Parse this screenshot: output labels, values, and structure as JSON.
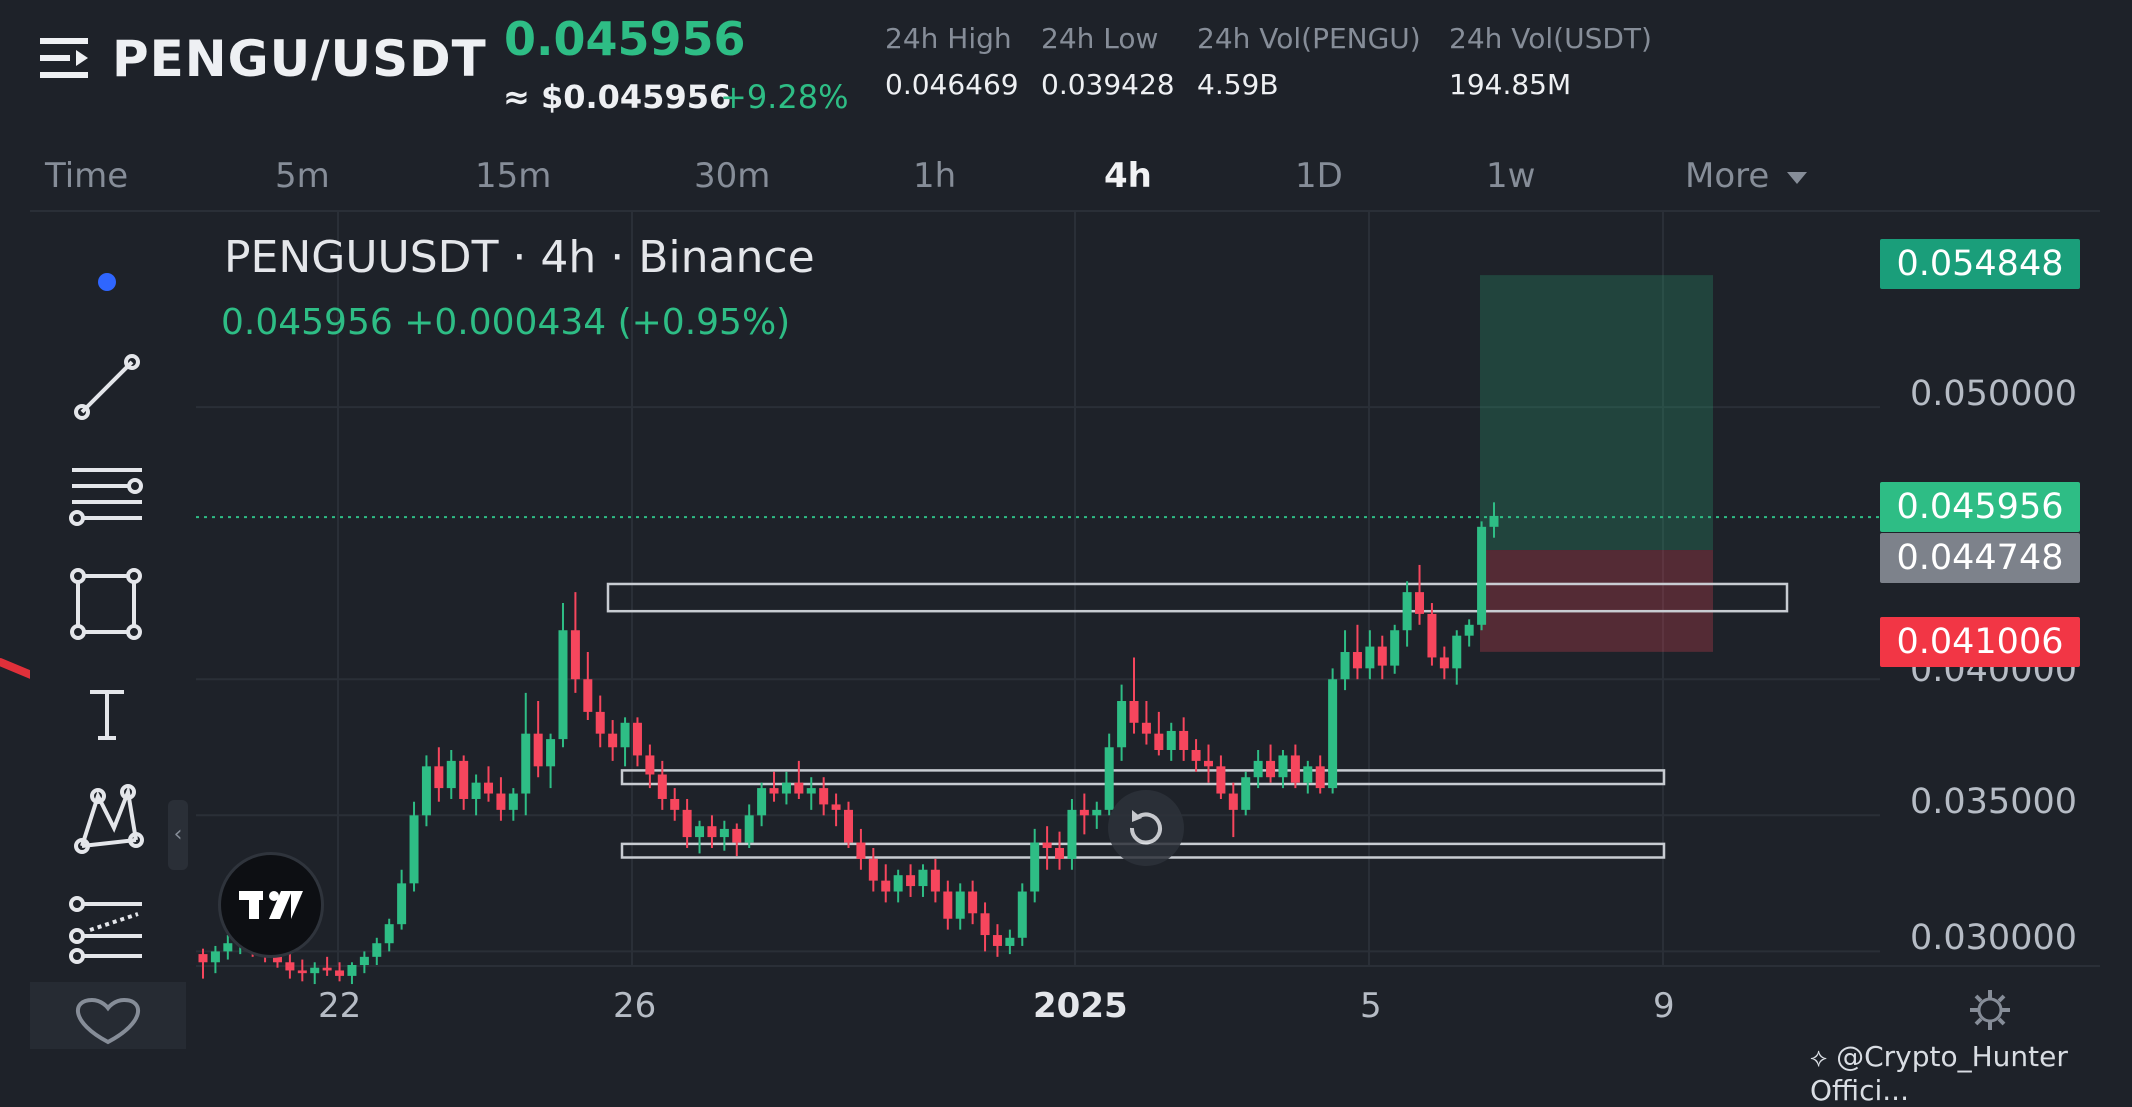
{
  "header": {
    "pair": "PENGU/USDT",
    "last_price": "0.045956",
    "usd_price": "≈ $0.045956",
    "change_pct": "+9.28%",
    "stats": [
      {
        "label": "24h High",
        "value": "0.046469"
      },
      {
        "label": "24h Low",
        "value": "0.039428"
      },
      {
        "label": "24h Vol(PENGU)",
        "value": "4.59B"
      },
      {
        "label": "24h Vol(USDT)",
        "value": "194.85M"
      }
    ]
  },
  "timeframes": {
    "items": [
      "Time",
      "5m",
      "15m",
      "30m",
      "1h",
      "4h",
      "1D",
      "1w",
      "More"
    ],
    "active": "4h"
  },
  "chart": {
    "legend_title": "PENGUUSDT · 4h · Binance",
    "legend_values": "0.045956  +0.000434 (+0.95%)"
  },
  "price_labels": {
    "take_profit": "0.054848",
    "last": "0.045956",
    "entry": "0.044748",
    "stop": "0.041006"
  },
  "chart_data": {
    "type": "candlestick",
    "title": "PENGUUSDT · 4h · Binance",
    "y_axis": {
      "ticks": [
        "0.050000",
        "0.040000",
        "0.035000",
        "0.030000"
      ],
      "range": [
        0.0295,
        0.0568
      ]
    },
    "x_axis": {
      "ticks": [
        "22",
        "26",
        "2025",
        "5",
        "9"
      ]
    },
    "last_price": 0.045956,
    "position": {
      "take_profit": 0.054848,
      "entry": 0.044748,
      "stop": 0.041006
    },
    "horizontal_zones": [
      {
        "low": 0.0425,
        "high": 0.0435
      },
      {
        "low": 0.03615,
        "high": 0.03665
      },
      {
        "low": 0.03345,
        "high": 0.03395
      }
    ],
    "candles": [
      [
        0.0299,
        0.0301,
        0.029,
        0.0296
      ],
      [
        0.0296,
        0.0302,
        0.0292,
        0.03
      ],
      [
        0.03,
        0.0306,
        0.0297,
        0.0303
      ],
      [
        0.0303,
        0.0308,
        0.0299,
        0.0305
      ],
      [
        0.0305,
        0.0307,
        0.0298,
        0.03
      ],
      [
        0.03,
        0.0316,
        0.0296,
        0.0298
      ],
      [
        0.0298,
        0.0303,
        0.0294,
        0.0296
      ],
      [
        0.0296,
        0.03,
        0.029,
        0.0293
      ],
      [
        0.0293,
        0.0297,
        0.0289,
        0.0292
      ],
      [
        0.0292,
        0.0296,
        0.0288,
        0.0294
      ],
      [
        0.0294,
        0.0298,
        0.0291,
        0.0293
      ],
      [
        0.0293,
        0.0296,
        0.0289,
        0.0291
      ],
      [
        0.0291,
        0.0296,
        0.0288,
        0.0295
      ],
      [
        0.0295,
        0.03,
        0.0292,
        0.0298
      ],
      [
        0.0298,
        0.0305,
        0.0295,
        0.0303
      ],
      [
        0.0303,
        0.0312,
        0.03,
        0.031
      ],
      [
        0.031,
        0.033,
        0.0308,
        0.0325
      ],
      [
        0.0325,
        0.0355,
        0.0322,
        0.035
      ],
      [
        0.035,
        0.0372,
        0.0346,
        0.0368
      ],
      [
        0.0368,
        0.0375,
        0.0355,
        0.036
      ],
      [
        0.036,
        0.0374,
        0.0356,
        0.037
      ],
      [
        0.037,
        0.0372,
        0.0352,
        0.0356
      ],
      [
        0.0356,
        0.0365,
        0.035,
        0.0362
      ],
      [
        0.0362,
        0.0368,
        0.0355,
        0.0358
      ],
      [
        0.0358,
        0.0364,
        0.0348,
        0.0352
      ],
      [
        0.0352,
        0.036,
        0.0348,
        0.0358
      ],
      [
        0.0358,
        0.0395,
        0.035,
        0.038
      ],
      [
        0.038,
        0.0392,
        0.0364,
        0.0368
      ],
      [
        0.0368,
        0.038,
        0.036,
        0.0378
      ],
      [
        0.0378,
        0.0428,
        0.0375,
        0.0418
      ],
      [
        0.0418,
        0.0432,
        0.0395,
        0.04
      ],
      [
        0.04,
        0.041,
        0.0385,
        0.0388
      ],
      [
        0.0388,
        0.0394,
        0.0375,
        0.038
      ],
      [
        0.038,
        0.0385,
        0.037,
        0.0375
      ],
      [
        0.0375,
        0.0386,
        0.0368,
        0.0384
      ],
      [
        0.0384,
        0.0386,
        0.0368,
        0.0372
      ],
      [
        0.0372,
        0.0376,
        0.036,
        0.0365
      ],
      [
        0.0365,
        0.037,
        0.0352,
        0.0356
      ],
      [
        0.0356,
        0.036,
        0.0348,
        0.0352
      ],
      [
        0.0352,
        0.0356,
        0.0338,
        0.0342
      ],
      [
        0.0342,
        0.0348,
        0.0336,
        0.0346
      ],
      [
        0.0346,
        0.035,
        0.0338,
        0.0342
      ],
      [
        0.0342,
        0.0348,
        0.0337,
        0.0345
      ],
      [
        0.0345,
        0.0347,
        0.0335,
        0.034
      ],
      [
        0.034,
        0.0354,
        0.0338,
        0.035
      ],
      [
        0.035,
        0.0362,
        0.0346,
        0.036
      ],
      [
        0.036,
        0.0366,
        0.0355,
        0.0358
      ],
      [
        0.0358,
        0.0366,
        0.0354,
        0.0362
      ],
      [
        0.0362,
        0.037,
        0.0356,
        0.0358
      ],
      [
        0.0358,
        0.0364,
        0.0352,
        0.036
      ],
      [
        0.036,
        0.0364,
        0.035,
        0.0354
      ],
      [
        0.0354,
        0.0358,
        0.0346,
        0.0352
      ],
      [
        0.0352,
        0.0355,
        0.0338,
        0.034
      ],
      [
        0.034,
        0.0345,
        0.033,
        0.0334
      ],
      [
        0.0334,
        0.0338,
        0.0322,
        0.0326
      ],
      [
        0.0326,
        0.0332,
        0.0318,
        0.0322
      ],
      [
        0.0322,
        0.033,
        0.0318,
        0.0328
      ],
      [
        0.0328,
        0.0332,
        0.032,
        0.0324
      ],
      [
        0.0324,
        0.0332,
        0.032,
        0.033
      ],
      [
        0.033,
        0.0334,
        0.0318,
        0.0322
      ],
      [
        0.0322,
        0.0326,
        0.0308,
        0.0312
      ],
      [
        0.0312,
        0.0325,
        0.0308,
        0.0322
      ],
      [
        0.0322,
        0.0326,
        0.031,
        0.0314
      ],
      [
        0.0314,
        0.0318,
        0.03,
        0.0306
      ],
      [
        0.0306,
        0.031,
        0.0298,
        0.0302
      ],
      [
        0.0302,
        0.0308,
        0.0299,
        0.0305
      ],
      [
        0.0305,
        0.0325,
        0.0302,
        0.0322
      ],
      [
        0.0322,
        0.0345,
        0.0318,
        0.034
      ],
      [
        0.034,
        0.0346,
        0.033,
        0.0338
      ],
      [
        0.0338,
        0.0344,
        0.033,
        0.0334
      ],
      [
        0.0334,
        0.0356,
        0.033,
        0.0352
      ],
      [
        0.0352,
        0.0358,
        0.0343,
        0.035
      ],
      [
        0.035,
        0.0355,
        0.0345,
        0.0352
      ],
      [
        0.0352,
        0.038,
        0.035,
        0.0375
      ],
      [
        0.0375,
        0.0398,
        0.037,
        0.0392
      ],
      [
        0.0392,
        0.0408,
        0.038,
        0.0384
      ],
      [
        0.0384,
        0.0392,
        0.0376,
        0.038
      ],
      [
        0.038,
        0.0388,
        0.0372,
        0.0374
      ],
      [
        0.0374,
        0.0384,
        0.037,
        0.0381
      ],
      [
        0.0381,
        0.0386,
        0.037,
        0.0374
      ],
      [
        0.0374,
        0.0378,
        0.0366,
        0.037
      ],
      [
        0.037,
        0.0376,
        0.0362,
        0.0368
      ],
      [
        0.0368,
        0.0372,
        0.0356,
        0.0358
      ],
      [
        0.0358,
        0.0362,
        0.0342,
        0.0352
      ],
      [
        0.0352,
        0.0366,
        0.035,
        0.0364
      ],
      [
        0.0364,
        0.0374,
        0.036,
        0.037
      ],
      [
        0.037,
        0.0376,
        0.0362,
        0.0364
      ],
      [
        0.0364,
        0.0374,
        0.036,
        0.0372
      ],
      [
        0.0372,
        0.0376,
        0.036,
        0.0362
      ],
      [
        0.0362,
        0.037,
        0.0358,
        0.0368
      ],
      [
        0.0368,
        0.0372,
        0.0358,
        0.036
      ],
      [
        0.036,
        0.0404,
        0.0358,
        0.04
      ],
      [
        0.04,
        0.0418,
        0.0396,
        0.041
      ],
      [
        0.041,
        0.042,
        0.04,
        0.0404
      ],
      [
        0.0404,
        0.0418,
        0.04,
        0.0412
      ],
      [
        0.0412,
        0.0416,
        0.04,
        0.0405
      ],
      [
        0.0405,
        0.042,
        0.0402,
        0.0418
      ],
      [
        0.0418,
        0.0436,
        0.0412,
        0.0432
      ],
      [
        0.0432,
        0.0442,
        0.042,
        0.0424
      ],
      [
        0.0424,
        0.0428,
        0.0405,
        0.0408
      ],
      [
        0.0408,
        0.0412,
        0.04,
        0.0404
      ],
      [
        0.0404,
        0.0418,
        0.0398,
        0.0416
      ],
      [
        0.0416,
        0.0422,
        0.0412,
        0.042
      ],
      [
        0.042,
        0.0458,
        0.0418,
        0.0456
      ],
      [
        0.0456,
        0.0465,
        0.0452,
        0.046
      ]
    ]
  },
  "tools": [
    "dot-tool",
    "trend-line",
    "horizontal-lines",
    "rectangle",
    "text",
    "pattern",
    "forecast",
    "favorites"
  ],
  "watermark": "@Crypto_Hunter Offici...",
  "colors": {
    "up": "#2ebd85",
    "down": "#f6465d",
    "entry": "#7d828b",
    "background": "#1e2229"
  }
}
